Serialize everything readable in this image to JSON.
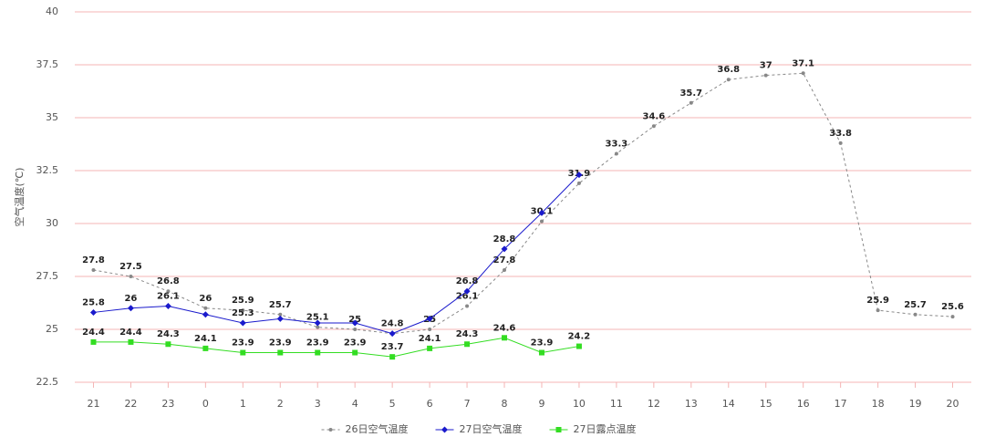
{
  "chart_data": {
    "type": "line",
    "y_label": "空气温度(℃)",
    "categories": [
      "21",
      "22",
      "23",
      "0",
      "1",
      "2",
      "3",
      "4",
      "5",
      "6",
      "7",
      "8",
      "9",
      "10",
      "11",
      "12",
      "13",
      "14",
      "15",
      "16",
      "17",
      "18",
      "19",
      "20"
    ],
    "ylim": [
      22.5,
      40
    ],
    "yticks": [
      22.5,
      25,
      27.5,
      30,
      32.5,
      35,
      37.5,
      40
    ],
    "grid": true,
    "legend": "bottom",
    "series": [
      {
        "name": "26日空气温度",
        "color": "#888888",
        "marker": "circle",
        "dashed": true,
        "values": [
          27.8,
          27.5,
          26.8,
          26,
          25.9,
          25.7,
          25.1,
          25,
          24.8,
          25,
          26.1,
          27.8,
          30.1,
          31.9,
          33.3,
          34.6,
          35.7,
          36.8,
          37,
          37.1,
          33.8,
          25.9,
          25.7,
          25.6
        ],
        "value_labels": [
          "27.8",
          "27.5",
          "26.8",
          "26",
          "25.9",
          "25.7",
          "25.1",
          "25",
          "24.8",
          "25",
          "26.1",
          "27.8",
          "30.1",
          "31.9",
          "33.3",
          "34.6",
          "35.7",
          "36.8",
          "37",
          "37.1",
          "33.8",
          "25.9",
          "25.7",
          "25.6"
        ]
      },
      {
        "name": "27日空气温度",
        "color": "#1a1acc",
        "marker": "diamond",
        "dashed": false,
        "values": [
          25.8,
          26,
          26.1,
          25.7,
          25.3,
          25.5,
          25.3,
          25.3,
          24.8,
          25.5,
          26.8,
          28.8,
          30.5,
          32.3,
          null,
          null,
          null,
          null,
          null,
          null,
          null,
          null,
          null,
          null
        ],
        "value_labels": [
          "25.8",
          "26",
          "26.1",
          null,
          "25.3",
          null,
          null,
          null,
          null,
          null,
          "26.8",
          "28.8",
          null,
          null,
          null,
          null,
          null,
          null,
          null,
          null,
          null,
          null,
          null,
          null
        ]
      },
      {
        "name": "27日露点温度",
        "color": "#33dd22",
        "marker": "square",
        "dashed": false,
        "values": [
          24.4,
          24.4,
          24.3,
          24.1,
          23.9,
          23.9,
          23.9,
          23.9,
          23.7,
          24.1,
          24.3,
          24.6,
          23.9,
          24.2,
          null,
          null,
          null,
          null,
          null,
          null,
          null,
          null,
          null,
          null
        ],
        "value_labels": [
          "24.4",
          "24.4",
          "24.3",
          "24.1",
          "23.9",
          "23.9",
          "23.9",
          "23.9",
          "23.7",
          "24.1",
          "24.3",
          "24.6",
          "23.9",
          "24.2",
          null,
          null,
          null,
          null,
          null,
          null,
          null,
          null,
          null,
          null
        ]
      }
    ]
  }
}
